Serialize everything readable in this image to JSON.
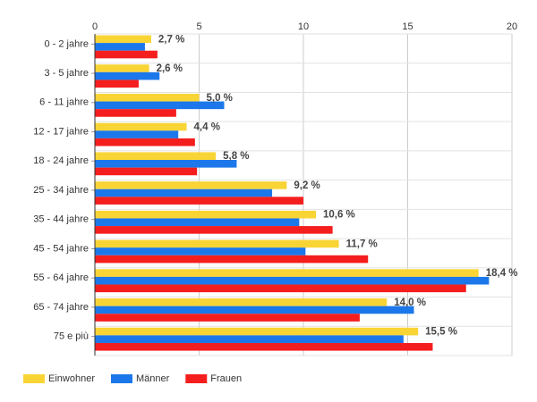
{
  "chart_data": {
    "type": "bar",
    "orientation": "horizontal",
    "categories": [
      "0 - 2 jahre",
      "3 - 5 jahre",
      "6 - 11 jahre",
      "12 - 17 jahre",
      "18 - 24 jahre",
      "25 - 34 jahre",
      "35 - 44 jahre",
      "45 - 54 jahre",
      "55 - 64 jahre",
      "65 - 74 jahre",
      "75 e più"
    ],
    "series": [
      {
        "name": "Einwohner",
        "color": "#f9d435",
        "values": [
          2.7,
          2.6,
          5.0,
          4.4,
          5.8,
          9.2,
          10.6,
          11.7,
          18.4,
          14.0,
          15.5
        ]
      },
      {
        "name": "Männer",
        "color": "#1c78ea",
        "values": [
          2.4,
          3.1,
          6.2,
          4.0,
          6.8,
          8.5,
          9.8,
          10.1,
          18.9,
          15.3,
          14.8
        ]
      },
      {
        "name": "Frauen",
        "color": "#f51e1e",
        "values": [
          3.0,
          2.1,
          3.9,
          4.8,
          4.9,
          10.0,
          11.4,
          13.1,
          17.8,
          12.7,
          16.2
        ]
      }
    ],
    "data_labels": [
      "2,7 %",
      "2,6 %",
      "5,0 %",
      "4,4 %",
      "5,8 %",
      "9,2 %",
      "10,6 %",
      "11,7 %",
      "18,4 %",
      "14,0 %",
      "15,5 %"
    ],
    "x_ticks": [
      0,
      5,
      10,
      15,
      20
    ],
    "xlim": [
      0,
      20
    ],
    "title": "",
    "xlabel": "",
    "ylabel": "",
    "grid": true,
    "legend_position": "bottom-left"
  }
}
